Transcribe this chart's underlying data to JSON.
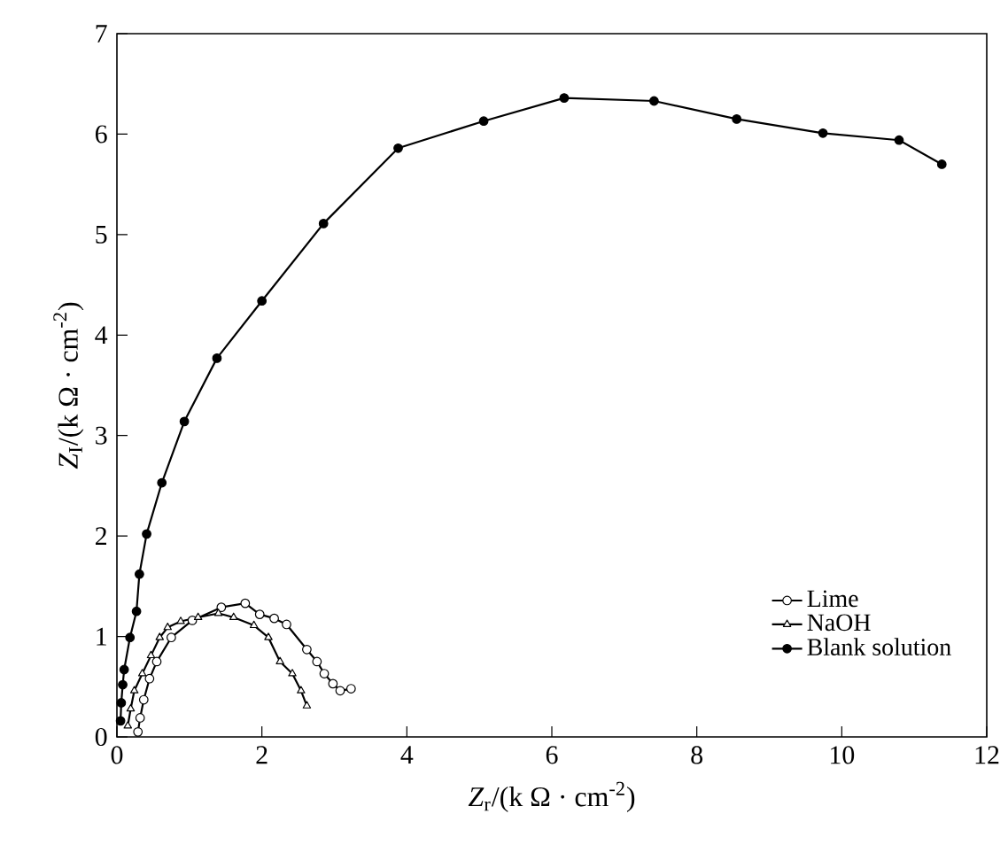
{
  "chart_data": {
    "type": "line",
    "xlabel": "*Z*$_{r}$/(k Ω · cm$^{-2}$)",
    "ylabel": "*Z*$_{I}$/(k Ω · cm$^{-2}$)",
    "xlim": [
      0,
      12
    ],
    "ylim": [
      0,
      7
    ],
    "xticks": [
      0,
      2,
      4,
      6,
      8,
      10,
      12
    ],
    "yticks": [
      0,
      1,
      2,
      3,
      4,
      5,
      6,
      7
    ],
    "grid": false,
    "legend": "bottom right",
    "line_style": "solid",
    "series": [
      {
        "name": "Lime",
        "color": "#000000",
        "marker": "circle",
        "x": [
          0.29,
          0.32,
          0.37,
          0.45,
          0.55,
          0.75,
          1.04,
          1.44,
          1.77,
          1.97,
          2.17,
          2.34,
          2.62,
          2.76,
          2.86,
          2.98,
          3.08,
          3.23
        ],
        "values": [
          0.05,
          0.19,
          0.37,
          0.58,
          0.75,
          0.99,
          1.16,
          1.29,
          1.33,
          1.22,
          1.18,
          1.12,
          0.87,
          0.75,
          0.63,
          0.53,
          0.46,
          0.48
        ]
      },
      {
        "name": "NaOH",
        "color": "#000000",
        "marker": "triangle",
        "x": [
          0.15,
          0.19,
          0.24,
          0.35,
          0.47,
          0.59,
          0.7,
          0.88,
          1.12,
          1.4,
          1.61,
          1.89,
          2.09,
          2.25,
          2.42,
          2.54,
          2.62
        ],
        "values": [
          0.11,
          0.28,
          0.46,
          0.63,
          0.81,
          0.99,
          1.09,
          1.15,
          1.19,
          1.23,
          1.19,
          1.11,
          0.99,
          0.75,
          0.63,
          0.46,
          0.31
        ]
      },
      {
        "name": "Blank solution",
        "color": "#000000",
        "marker": "circle",
        "x": [
          0.05,
          0.06,
          0.08,
          0.1,
          0.18,
          0.27,
          0.31,
          0.41,
          0.62,
          0.93,
          1.38,
          2.0,
          2.85,
          3.88,
          5.06,
          6.17,
          7.41,
          8.55,
          9.74,
          10.79,
          11.38
        ],
        "values": [
          0.16,
          0.34,
          0.52,
          0.67,
          0.99,
          1.25,
          1.62,
          2.02,
          2.53,
          3.14,
          3.77,
          4.34,
          5.11,
          5.86,
          6.13,
          6.36,
          6.33,
          6.15,
          6.01,
          5.94,
          5.7
        ]
      }
    ]
  }
}
